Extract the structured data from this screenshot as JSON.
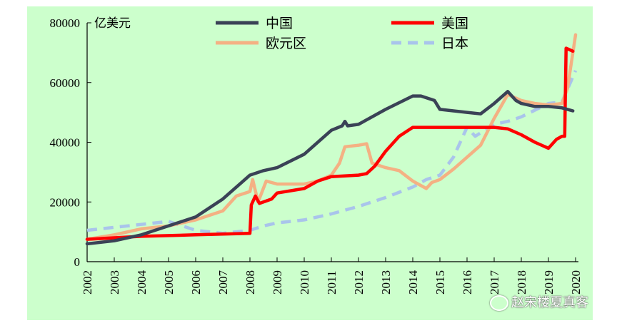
{
  "chart_data": {
    "type": "line",
    "unit_label": "亿美元",
    "ylim": [
      0,
      80000
    ],
    "yticks": [
      "0",
      "20000",
      "40000",
      "60000",
      "80000"
    ],
    "xlim": [
      2002,
      2020
    ],
    "xticks": [
      "2002",
      "2003",
      "2004",
      "2005",
      "2006",
      "2007",
      "2008",
      "2009",
      "2010",
      "2011",
      "2012",
      "2013",
      "2014",
      "2015",
      "2016",
      "2017",
      "2018",
      "2019",
      "2020"
    ],
    "legend_placement": "top",
    "grid": false,
    "series": [
      {
        "name": "中国",
        "color": "#3a4256",
        "dash": "none",
        "points": [
          [
            2002,
            6000
          ],
          [
            2003,
            7000
          ],
          [
            2004,
            9000
          ],
          [
            2005,
            12000
          ],
          [
            2006,
            15000
          ],
          [
            2007,
            21000
          ],
          [
            2008,
            29000
          ],
          [
            2008.5,
            30500
          ],
          [
            2009,
            31500
          ],
          [
            2010,
            36000
          ],
          [
            2011,
            44000
          ],
          [
            2011.4,
            45500
          ],
          [
            2011.5,
            47000
          ],
          [
            2011.6,
            45500
          ],
          [
            2012,
            46000
          ],
          [
            2013,
            51000
          ],
          [
            2014,
            55500
          ],
          [
            2014.3,
            55500
          ],
          [
            2014.8,
            54000
          ],
          [
            2015,
            51000
          ],
          [
            2015.5,
            50500
          ],
          [
            2016,
            50000
          ],
          [
            2016.5,
            49500
          ],
          [
            2017,
            53000
          ],
          [
            2017.5,
            57000
          ],
          [
            2017.8,
            54000
          ],
          [
            2018,
            53000
          ],
          [
            2018.5,
            52000
          ],
          [
            2019,
            52000
          ],
          [
            2019.5,
            51500
          ],
          [
            2019.9,
            50500
          ]
        ]
      },
      {
        "name": "美国",
        "color": "#ff0000",
        "dash": "none",
        "points": [
          [
            2002,
            7500
          ],
          [
            2004,
            8500
          ],
          [
            2006,
            9000
          ],
          [
            2008,
            9500
          ],
          [
            2008.05,
            19000
          ],
          [
            2008.2,
            22000
          ],
          [
            2008.35,
            19500
          ],
          [
            2008.8,
            21000
          ],
          [
            2009,
            23000
          ],
          [
            2010,
            24500
          ],
          [
            2010.5,
            27000
          ],
          [
            2011,
            28500
          ],
          [
            2012,
            29000
          ],
          [
            2012.3,
            29500
          ],
          [
            2012.6,
            32000
          ],
          [
            2013,
            37000
          ],
          [
            2013.5,
            42000
          ],
          [
            2014,
            45000
          ],
          [
            2015,
            45000
          ],
          [
            2016,
            45000
          ],
          [
            2017,
            45000
          ],
          [
            2017.5,
            44500
          ],
          [
            2018,
            42500
          ],
          [
            2018.5,
            40000
          ],
          [
            2019,
            38000
          ],
          [
            2019.3,
            41000
          ],
          [
            2019.5,
            42000
          ],
          [
            2019.6,
            42000
          ],
          [
            2019.65,
            71500
          ],
          [
            2019.9,
            70500
          ]
        ]
      },
      {
        "name": "欧元区",
        "color": "#f4b183",
        "dash": "none",
        "points": [
          [
            2002,
            7500
          ],
          [
            2003,
            9000
          ],
          [
            2004,
            11000
          ],
          [
            2005,
            12000
          ],
          [
            2006,
            14000
          ],
          [
            2007,
            17000
          ],
          [
            2007.5,
            22000
          ],
          [
            2008,
            23500
          ],
          [
            2008.1,
            27500
          ],
          [
            2008.3,
            20000
          ],
          [
            2008.6,
            27000
          ],
          [
            2009,
            26000
          ],
          [
            2010,
            26000
          ],
          [
            2010.5,
            27000
          ],
          [
            2011,
            29000
          ],
          [
            2011.3,
            33000
          ],
          [
            2011.5,
            38500
          ],
          [
            2012,
            39000
          ],
          [
            2012.3,
            39500
          ],
          [
            2012.5,
            33000
          ],
          [
            2013,
            31500
          ],
          [
            2013.5,
            30500
          ],
          [
            2014,
            27000
          ],
          [
            2014.5,
            24500
          ],
          [
            2014.7,
            26500
          ],
          [
            2015,
            27500
          ],
          [
            2015.5,
            31000
          ],
          [
            2016,
            35000
          ],
          [
            2016.5,
            39000
          ],
          [
            2017,
            48000
          ],
          [
            2017.5,
            56000
          ],
          [
            2018,
            54000
          ],
          [
            2018.5,
            53000
          ],
          [
            2019,
            52500
          ],
          [
            2019.5,
            53000
          ],
          [
            2019.7,
            58000
          ],
          [
            2020,
            76000
          ]
        ]
      },
      {
        "name": "日本",
        "color": "#a9c4eb",
        "dash": "dash",
        "points": [
          [
            2002,
            10500
          ],
          [
            2003,
            11500
          ],
          [
            2004,
            12500
          ],
          [
            2005,
            13500
          ],
          [
            2006,
            10500
          ],
          [
            2007,
            9500
          ],
          [
            2008,
            10500
          ],
          [
            2008.5,
            12000
          ],
          [
            2009,
            13000
          ],
          [
            2010,
            14000
          ],
          [
            2011,
            16000
          ],
          [
            2012,
            18500
          ],
          [
            2013,
            21500
          ],
          [
            2014,
            25000
          ],
          [
            2014.5,
            27500
          ],
          [
            2015,
            29000
          ],
          [
            2015.5,
            35000
          ],
          [
            2016,
            45000
          ],
          [
            2016.3,
            42000
          ],
          [
            2017,
            46000
          ],
          [
            2017.5,
            47000
          ],
          [
            2018,
            48500
          ],
          [
            2019,
            53000
          ],
          [
            2019.5,
            53500
          ],
          [
            2020,
            64000
          ]
        ]
      }
    ]
  },
  "watermark": {
    "text": "赵宋楼夏真客"
  }
}
